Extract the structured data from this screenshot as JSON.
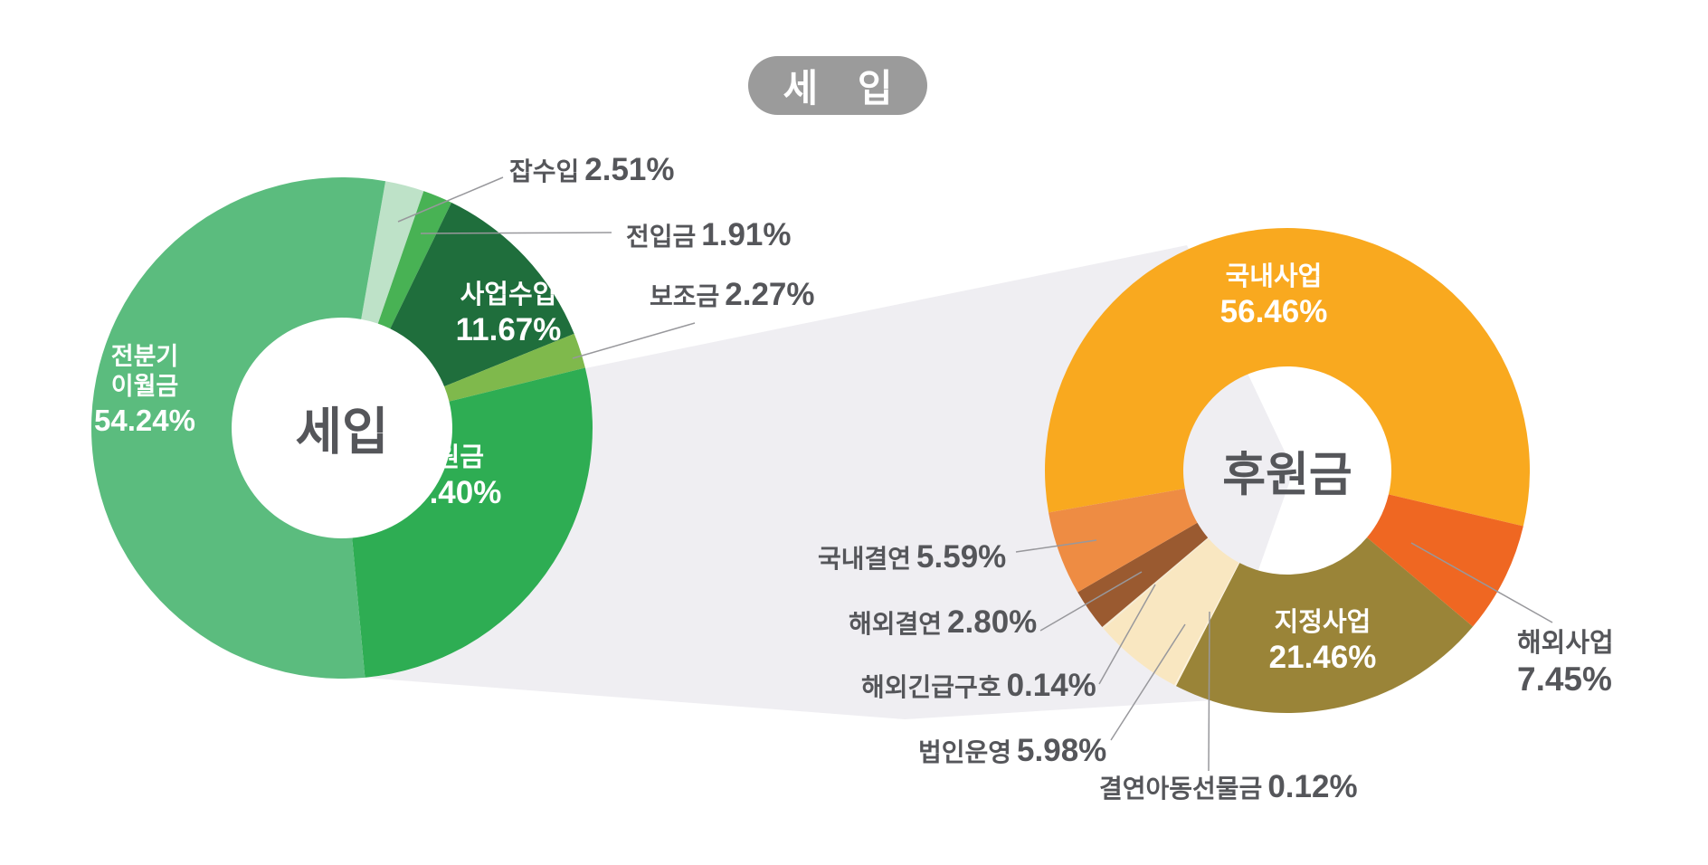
{
  "badge": {
    "label": "세 입",
    "bg": "#9B9B9B",
    "text_color": "#FFFFFF"
  },
  "colors": {
    "background": "#FFFFFF",
    "band": "#EFEEF2",
    "label_text": "#55565A",
    "leader_line": "#98989C",
    "inside_label_text": "#FFFFFF"
  },
  "chart_data": [
    {
      "type": "pie",
      "variant": "donut",
      "title": "세입",
      "center_label": "세입",
      "start_angle": 10,
      "direction": "clockwise",
      "segments": [
        {
          "label": "잡수입",
          "value": 2.51,
          "display": "2.51%",
          "color": "#BEE2C8",
          "label_position": "outside"
        },
        {
          "label": "전입금",
          "value": 1.91,
          "display": "1.91%",
          "color": "#48B254",
          "label_position": "outside"
        },
        {
          "label": "사업수입",
          "value": 11.67,
          "display": "11.67%",
          "color": "#1F6E3C",
          "label_position": "inside"
        },
        {
          "label": "보조금",
          "value": 2.27,
          "display": "2.27%",
          "color": "#7FB94C",
          "label_position": "outside"
        },
        {
          "label": "후원금",
          "value": 27.4,
          "display": "27.40%",
          "color": "#2EAD53",
          "label_position": "inside"
        },
        {
          "label": "전분기 이월금",
          "value": 54.24,
          "display": "54.24%",
          "color": "#5BBC7E",
          "label_position": "inside"
        }
      ]
    },
    {
      "type": "pie",
      "variant": "donut",
      "title": "후원금",
      "center_label": "후원금",
      "start_angle": -100,
      "direction": "clockwise",
      "segments": [
        {
          "label": "국내사업",
          "value": 56.46,
          "display": "56.46%",
          "color": "#F9A91F",
          "label_position": "inside"
        },
        {
          "label": "해외사업",
          "value": 7.45,
          "display": "7.45%",
          "color": "#EF6722",
          "label_position": "outside"
        },
        {
          "label": "지정사업",
          "value": 21.46,
          "display": "21.46%",
          "color": "#9A8438",
          "label_position": "inside"
        },
        {
          "label": "결연아동선물금",
          "value": 0.12,
          "display": "0.12%",
          "color": "#FDF3DF",
          "label_position": "outside"
        },
        {
          "label": "법인운영",
          "value": 5.98,
          "display": "5.98%",
          "color": "#F9E7C1",
          "label_position": "outside"
        },
        {
          "label": "해외긴급구호",
          "value": 0.14,
          "display": "0.14%",
          "color": "#F6ECD4",
          "label_position": "outside"
        },
        {
          "label": "해외결연",
          "value": 2.8,
          "display": "2.80%",
          "color": "#9A5A30",
          "label_position": "outside"
        },
        {
          "label": "국내결연",
          "value": 5.59,
          "display": "5.59%",
          "color": "#EE8C43",
          "label_position": "outside"
        }
      ]
    }
  ],
  "connector": {
    "meaning": "세입의 후원금 27.40% 항목이 우측 후원금 도넛으로 확대됨"
  }
}
